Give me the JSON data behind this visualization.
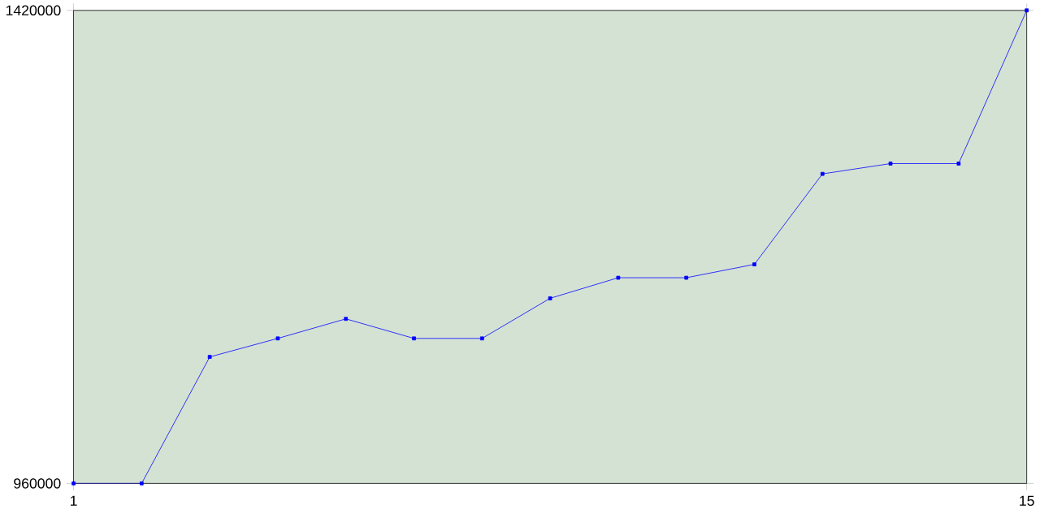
{
  "chart_data": {
    "type": "line",
    "x": [
      1,
      2,
      3,
      4,
      5,
      6,
      7,
      8,
      9,
      10,
      11,
      12,
      13,
      14,
      15
    ],
    "values": [
      960000,
      960000,
      1083000,
      1101000,
      1120000,
      1101000,
      1101000,
      1140000,
      1160000,
      1160000,
      1173000,
      1261000,
      1271000,
      1271000,
      1420000
    ],
    "color": "#0000ff",
    "marker": "square",
    "line_style": "solid",
    "grid": false,
    "xlim": [
      1,
      15
    ],
    "xticks": [
      1,
      15
    ],
    "ylim": [
      960000,
      1420000
    ],
    "yticks": [
      960000,
      1420000
    ]
  }
}
